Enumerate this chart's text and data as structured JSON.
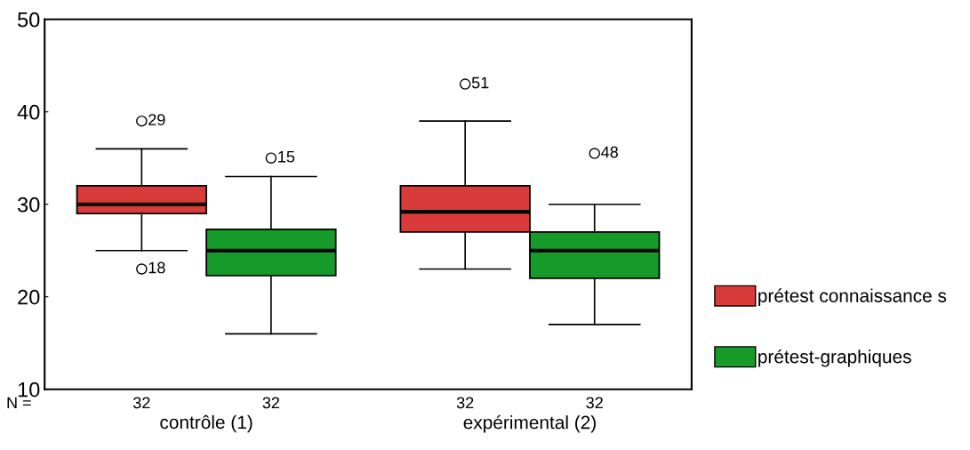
{
  "chart_data": {
    "type": "box",
    "categories": [
      "contrôle (1)",
      "expérimental (2)"
    ],
    "ylim": [
      10,
      50
    ],
    "yticks": [
      10,
      20,
      30,
      40,
      50
    ],
    "grid": false,
    "legend": "right",
    "series": [
      {
        "name": "prétest connaissance s",
        "color": "#d93a3a",
        "boxes": [
          {
            "low": 25,
            "q1": 29,
            "median": 30,
            "q3": 32,
            "high": 36,
            "outliers": [
              39,
              23
            ]
          },
          {
            "low": 23,
            "q1": 27,
            "median": 29.2,
            "q3": 32,
            "high": 39,
            "outliers": [
              43
            ]
          }
        ]
      },
      {
        "name": "prétest-graphiques",
        "color": "#169a2a",
        "boxes": [
          {
            "low": 16,
            "q1": 22.3,
            "median": 25,
            "q3": 27.3,
            "high": 33,
            "outliers": [
              35
            ]
          },
          {
            "low": 17,
            "q1": 22,
            "median": 25,
            "q3": 27,
            "high": 30,
            "outliers": [
              35.5
            ]
          }
        ]
      }
    ],
    "annotations": [
      "29",
      "18",
      "51",
      "15",
      "48",
      "N =",
      "32",
      "32",
      "32",
      "32"
    ]
  }
}
